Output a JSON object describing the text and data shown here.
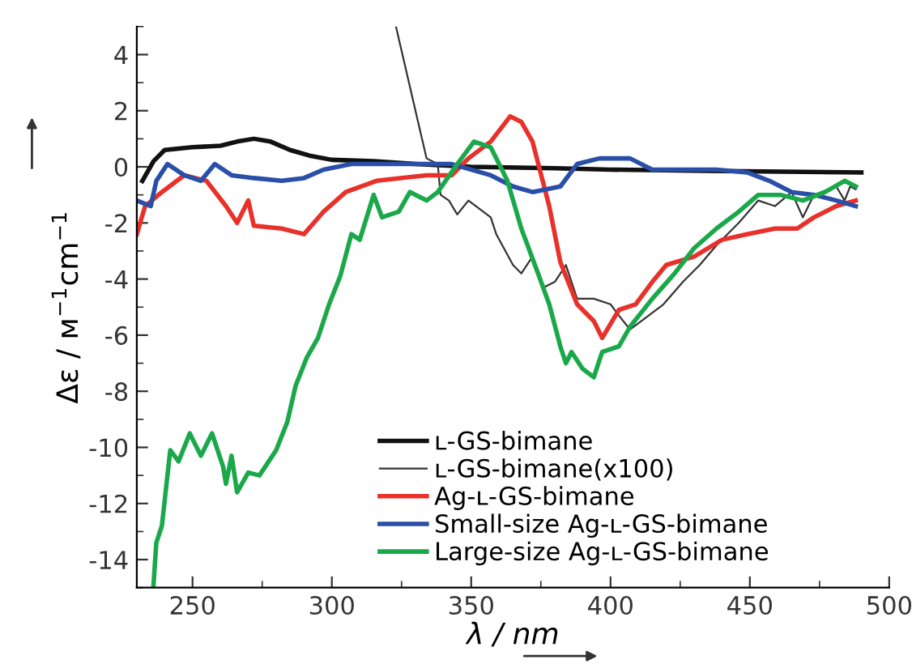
{
  "chart_data": {
    "type": "line",
    "xlabel": "λ / nm",
    "ylabel": "Δε / ᴍ$^{−1}$cm$^{−1}$",
    "xlim": [
      230,
      500
    ],
    "xticks": [
      250,
      300,
      350,
      400,
      450,
      500
    ],
    "ylim": [
      -15,
      5
    ],
    "yticks": [
      -14,
      -12,
      -10,
      -8,
      -6,
      -4,
      -2,
      0,
      2,
      4
    ],
    "grid": false,
    "legend": "bottom right",
    "line_style": "solid",
    "marker": "none",
    "series": [
      {
        "name": "ʟ-GS-bimane",
        "color": "#111111",
        "x": [
          232,
          236,
          240,
          250,
          260,
          266,
          272,
          278,
          285,
          292,
          300,
          315,
          330,
          350,
          380,
          400,
          440,
          490
        ],
        "values": [
          -0.5,
          0.2,
          0.6,
          0.7,
          0.75,
          0.9,
          1.0,
          0.9,
          0.6,
          0.4,
          0.25,
          0.2,
          0.1,
          0.0,
          -0.05,
          -0.1,
          -0.15,
          -0.2
        ]
      },
      {
        "name": "ʟ-GS-bimane(x100)",
        "color": "#333333",
        "x": [
          323,
          330,
          334,
          338,
          339,
          342,
          345,
          349,
          357,
          359,
          365,
          368,
          372,
          376,
          380,
          384,
          388,
          394,
          400,
          403,
          407,
          411,
          419,
          426,
          432,
          438,
          446,
          453,
          459,
          465,
          469,
          473,
          481,
          484,
          486,
          488
        ],
        "values": [
          5,
          2.0,
          0.3,
          0.1,
          -1.0,
          -1.2,
          -1.7,
          -1.2,
          -1.8,
          -2.4,
          -3.5,
          -3.8,
          -3.2,
          -4.3,
          -4.1,
          -3.5,
          -4.7,
          -4.7,
          -4.9,
          -5.3,
          -5.8,
          -5.5,
          -4.9,
          -4.1,
          -3.5,
          -2.8,
          -2.0,
          -1.2,
          -1.4,
          -0.9,
          -1.8,
          -1.0,
          -0.7,
          -1.2,
          -0.7,
          -0.8
        ]
      },
      {
        "name": "Ag-ʟ-GS-bimane",
        "color": "#e8312a",
        "x": [
          230,
          233,
          239,
          247,
          255,
          262,
          266,
          270,
          272,
          282,
          290,
          297,
          305,
          316,
          334,
          343,
          349,
          357,
          364,
          368,
          372,
          378,
          382,
          388,
          394,
          397,
          403,
          409,
          415,
          420,
          430,
          440,
          449,
          459,
          467,
          473,
          481,
          488
        ],
        "values": [
          -2.4,
          -1.4,
          -0.9,
          -0.3,
          -0.5,
          -1.4,
          -2.0,
          -1.2,
          -2.1,
          -2.2,
          -2.4,
          -1.6,
          -0.9,
          -0.5,
          -0.3,
          -0.3,
          0.3,
          0.9,
          1.8,
          1.6,
          0.9,
          -1.4,
          -3.4,
          -4.9,
          -5.5,
          -6.1,
          -5.1,
          -4.9,
          -4.1,
          -3.5,
          -3.2,
          -2.6,
          -2.4,
          -2.2,
          -2.2,
          -1.8,
          -1.4,
          -1.2
        ]
      },
      {
        "name": "Small-size Ag-ʟ-GS-bimane",
        "color": "#2a4fa8",
        "x": [
          230,
          235,
          237,
          241,
          247,
          253,
          258,
          264,
          272,
          282,
          290,
          297,
          307,
          316,
          332,
          343,
          357,
          365,
          372,
          382,
          388,
          396,
          407,
          415,
          425,
          438,
          449,
          457,
          465,
          473,
          481,
          488
        ],
        "values": [
          -1.2,
          -1.4,
          -0.5,
          0.1,
          -0.3,
          -0.5,
          0.1,
          -0.3,
          -0.4,
          -0.5,
          -0.4,
          -0.1,
          0.1,
          0.1,
          0.1,
          0.1,
          -0.3,
          -0.7,
          -0.9,
          -0.7,
          0.1,
          0.3,
          0.3,
          -0.1,
          -0.1,
          -0.1,
          -0.2,
          -0.5,
          -0.9,
          -1.0,
          -1.2,
          -1.4
        ]
      },
      {
        "name": "Large-size Ag-ʟ-GS-bimane",
        "color": "#1aa84a",
        "x": [
          236,
          237,
          239,
          242,
          245,
          249,
          253,
          257,
          261,
          262,
          264,
          266,
          270,
          274,
          280,
          284,
          287,
          291,
          295,
          299,
          303,
          307,
          310,
          315,
          318,
          324,
          328,
          334,
          338,
          345,
          351,
          357,
          363,
          368,
          374,
          378,
          382,
          384,
          386,
          390,
          394,
          397,
          403,
          407,
          415,
          423,
          430,
          438,
          446,
          453,
          461,
          469,
          477,
          484,
          488
        ],
        "values": [
          -14.9,
          -13.4,
          -12.8,
          -10.1,
          -10.5,
          -9.5,
          -10.3,
          -9.5,
          -10.7,
          -11.3,
          -10.3,
          -11.6,
          -10.9,
          -11.0,
          -10.1,
          -9.1,
          -7.8,
          -6.8,
          -6.1,
          -4.9,
          -3.9,
          -2.4,
          -2.6,
          -1.0,
          -1.8,
          -1.6,
          -0.9,
          -1.2,
          -0.9,
          0.1,
          0.9,
          0.7,
          -0.5,
          -2.2,
          -3.8,
          -4.9,
          -6.4,
          -7.0,
          -6.6,
          -7.2,
          -7.5,
          -6.6,
          -6.4,
          -5.7,
          -4.7,
          -3.8,
          -2.9,
          -2.2,
          -1.6,
          -1.0,
          -1.0,
          -1.2,
          -0.9,
          -0.5,
          -0.7
        ]
      }
    ]
  }
}
